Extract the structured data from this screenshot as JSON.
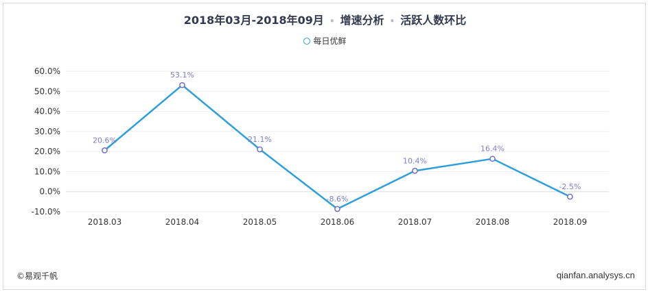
{
  "header": {
    "period": "2018年03月-2018年09月",
    "sep": "•",
    "section": "增速分析",
    "metric": "活跃人数环比"
  },
  "footer": {
    "copyright": "©易观千帆",
    "site": "qianfan.analysys.cn"
  },
  "colors": {
    "line": "#2c9fdb",
    "marker_stroke": "#6f6fc8",
    "label": "#7a7fcf",
    "grid": "#eeeeee"
  },
  "chart_data": {
    "type": "line",
    "title": "",
    "xlabel": "",
    "ylabel": "",
    "categories": [
      "2018.03",
      "2018.04",
      "2018.05",
      "2018.06",
      "2018.07",
      "2018.08",
      "2018.09"
    ],
    "series": [
      {
        "name": "每日优鲜",
        "values": [
          20.6,
          53.1,
          21.1,
          -8.6,
          10.4,
          16.4,
          -2.5
        ],
        "labels": [
          "20.6%",
          "53.1%",
          "21.1%",
          "-8.6%",
          "10.4%",
          "16.4%",
          "-2.5%"
        ]
      }
    ],
    "yticks": [
      "60.0%",
      "50.0%",
      "40.0%",
      "30.0%",
      "20.0%",
      "10.0%",
      "0.0%",
      "-10.0%"
    ],
    "ytick_values": [
      60,
      50,
      40,
      30,
      20,
      10,
      0,
      -10
    ],
    "ylim": [
      -10,
      60
    ],
    "legend": "top-center",
    "grid": true
  }
}
